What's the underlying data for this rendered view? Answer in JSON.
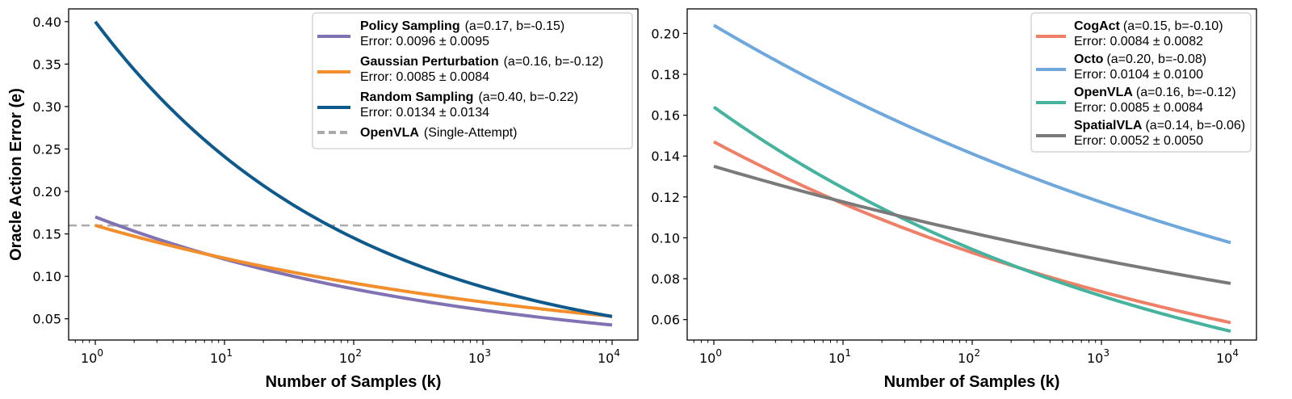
{
  "chart_data": [
    {
      "type": "line",
      "title": "",
      "xlabel": "Number of Samples (k)",
      "ylabel": "Oracle Action Error (e)",
      "xscale": "log",
      "xlim": [
        1,
        10000
      ],
      "ylim": [
        0.025,
        0.415
      ],
      "xticks": [
        1,
        10,
        100,
        1000,
        10000
      ],
      "xtick_labels": [
        {
          "base": "10",
          "exp": "0"
        },
        {
          "base": "10",
          "exp": "1"
        },
        {
          "base": "10",
          "exp": "2"
        },
        {
          "base": "10",
          "exp": "3"
        },
        {
          "base": "10",
          "exp": "4"
        }
      ],
      "yticks": [
        0.05,
        0.1,
        0.15,
        0.2,
        0.25,
        0.3,
        0.35,
        0.4
      ],
      "ytick_labels": [
        "0.05",
        "0.10",
        "0.15",
        "0.20",
        "0.25",
        "0.30",
        "0.35",
        "0.40"
      ],
      "grid": false,
      "legend_position": "top-right",
      "series": [
        {
          "name": "Policy Sampling",
          "params": "(a=0.17, b=-0.15)",
          "error": "Error: 0.0096 ± 0.0095",
          "a": 0.17,
          "b": -0.15,
          "color": "#8172B3",
          "style": "solid"
        },
        {
          "name": "Gaussian Perturbation",
          "params": "(a=0.16, b=-0.12)",
          "error": "Error: 0.0085 ± 0.0084",
          "a": 0.16,
          "b": -0.12,
          "color": "#F28E2B",
          "style": "solid"
        },
        {
          "name": "Random Sampling",
          "params": "(a=0.40, b=-0.22)",
          "error": "Error: 0.0134 ± 0.0134",
          "a": 0.4,
          "b": -0.22,
          "color": "#0F5A8C",
          "style": "solid"
        }
      ],
      "reference_lines": [
        {
          "name": "OpenVLA",
          "params": "(Single-Attempt)",
          "y": 0.16,
          "color": "#AAAAAA",
          "style": "dashed"
        }
      ]
    },
    {
      "type": "line",
      "title": "",
      "xlabel": "Number of Samples (k)",
      "ylabel": "",
      "xscale": "log",
      "xlim": [
        1,
        10000
      ],
      "ylim": [
        0.05,
        0.212
      ],
      "xticks": [
        1,
        10,
        100,
        1000,
        10000
      ],
      "xtick_labels": [
        {
          "base": "10",
          "exp": "0"
        },
        {
          "base": "10",
          "exp": "1"
        },
        {
          "base": "10",
          "exp": "2"
        },
        {
          "base": "10",
          "exp": "3"
        },
        {
          "base": "10",
          "exp": "4"
        }
      ],
      "yticks": [
        0.06,
        0.08,
        0.1,
        0.12,
        0.14,
        0.16,
        0.18,
        0.2
      ],
      "ytick_labels": [
        "0.06",
        "0.08",
        "0.10",
        "0.12",
        "0.14",
        "0.16",
        "0.18",
        "0.20"
      ],
      "grid": false,
      "legend_position": "top-right",
      "series": [
        {
          "name": "CogAct",
          "params": "(a=0.15, b=-0.10)",
          "error": "Error: 0.0084 ± 0.0082",
          "a": 0.147,
          "b": -0.1,
          "color": "#EF7F66",
          "style": "solid"
        },
        {
          "name": "Octo",
          "params": "(a=0.20, b=-0.08)",
          "error": "Error: 0.0104 ± 0.0100",
          "a": 0.204,
          "b": -0.08,
          "color": "#6FA8DC",
          "style": "solid"
        },
        {
          "name": "OpenVLA",
          "params": "(a=0.16, b=-0.12)",
          "error": "Error: 0.0085 ± 0.0084",
          "a": 0.164,
          "b": -0.12,
          "color": "#45B39D",
          "style": "solid"
        },
        {
          "name": "SpatialVLA",
          "params": "(a=0.14, b=-0.06)",
          "error": "Error: 0.0052 ± 0.0050",
          "a": 0.135,
          "b": -0.06,
          "color": "#7A7A7A",
          "style": "solid"
        }
      ],
      "reference_lines": []
    }
  ]
}
